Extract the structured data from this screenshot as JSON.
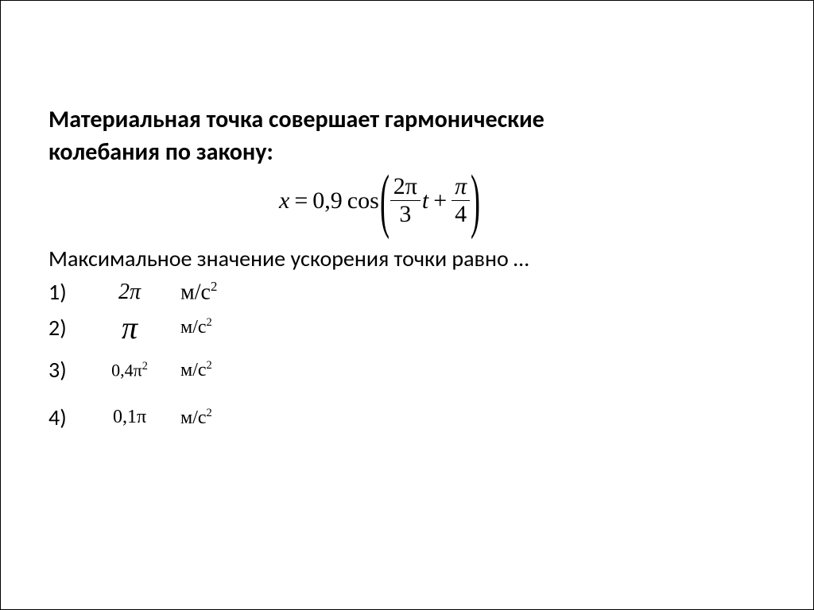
{
  "title_line1": "Материальная точка совершает гармонические",
  "title_line2": "колебания по закону:",
  "equation": {
    "lhs_var": "x",
    "equals": "=",
    "amplitude": "0,9",
    "func": "cos",
    "frac1_num": "2π",
    "frac1_den": "3",
    "var_t": "t",
    "plus": "+",
    "frac2_num": "π",
    "frac2_den": "4"
  },
  "subtitle": "Максимальное значение ускорения точки равно …",
  "options": {
    "nums": [
      "1)",
      "2)",
      "3)",
      "4)"
    ],
    "vals": {
      "opt1": "2π",
      "opt2": "π",
      "opt3_base": "0,4π",
      "opt3_exp": "2",
      "opt4": "0,1π"
    },
    "unit_base": "м/с",
    "unit_exp": "2"
  }
}
